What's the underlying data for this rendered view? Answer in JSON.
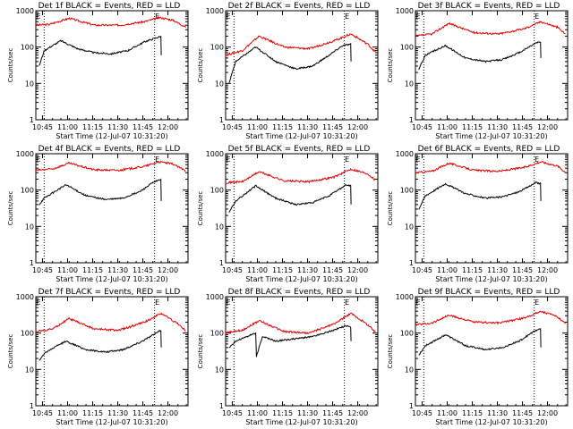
{
  "chart_data": {
    "type": "line",
    "grid": false,
    "xlabel": "Start Time (12-Jul-07 10:31:20)",
    "ylabel": "Counts/sec",
    "ylim": [
      1,
      1000
    ],
    "xlim_minutes": [
      10,
      101
    ],
    "xtick_minutes": [
      14,
      29,
      44,
      59,
      74,
      89
    ],
    "xtick_labels": [
      "10:45",
      "11:00",
      "11:15",
      "11:30",
      "11:45",
      "12:00"
    ],
    "ytick_values": [
      1,
      10,
      100,
      1000
    ],
    "ytick_labels": [
      "1",
      "10",
      "100",
      "1000"
    ],
    "marker_label": "E",
    "series_names": [
      "Events",
      "LLD"
    ],
    "series_colors": [
      "#000000",
      "#e00000"
    ],
    "panels": [
      {
        "title": "Det 1f BLACK = Events, RED = LLD",
        "events_window": [
          12,
          85
        ],
        "lld": [
          [
            10,
            400
          ],
          [
            18,
            420
          ],
          [
            30,
            620
          ],
          [
            45,
            400
          ],
          [
            60,
            400
          ],
          [
            75,
            500
          ],
          [
            84,
            650
          ],
          [
            92,
            550
          ],
          [
            100,
            350
          ]
        ],
        "events": [
          [
            12,
            30
          ],
          [
            15,
            80
          ],
          [
            25,
            150
          ],
          [
            35,
            90
          ],
          [
            45,
            70
          ],
          [
            55,
            65
          ],
          [
            65,
            80
          ],
          [
            75,
            140
          ],
          [
            82,
            180
          ],
          [
            85,
            200
          ],
          [
            85,
            60
          ]
        ],
        "dotted": [
          15,
          81
        ]
      },
      {
        "title": "Det 2f BLACK = Events, RED = LLD",
        "events_window": [
          12,
          85
        ],
        "lld": [
          [
            10,
            60
          ],
          [
            20,
            80
          ],
          [
            30,
            200
          ],
          [
            45,
            100
          ],
          [
            60,
            90
          ],
          [
            75,
            150
          ],
          [
            85,
            230
          ],
          [
            95,
            120
          ],
          [
            100,
            70
          ]
        ],
        "events": [
          [
            12,
            10
          ],
          [
            16,
            40
          ],
          [
            28,
            100
          ],
          [
            40,
            40
          ],
          [
            52,
            25
          ],
          [
            62,
            30
          ],
          [
            72,
            60
          ],
          [
            80,
            110
          ],
          [
            85,
            120
          ],
          [
            85,
            40
          ]
        ],
        "dotted": [
          15,
          81
        ]
      },
      {
        "title": "Det 3f BLACK = Events, RED = LLD",
        "events_window": [
          12,
          85
        ],
        "lld": [
          [
            10,
            200
          ],
          [
            20,
            230
          ],
          [
            30,
            450
          ],
          [
            45,
            250
          ],
          [
            60,
            230
          ],
          [
            75,
            320
          ],
          [
            85,
            500
          ],
          [
            95,
            350
          ],
          [
            100,
            220
          ]
        ],
        "events": [
          [
            12,
            25
          ],
          [
            16,
            60
          ],
          [
            28,
            110
          ],
          [
            40,
            50
          ],
          [
            52,
            40
          ],
          [
            62,
            45
          ],
          [
            72,
            70
          ],
          [
            82,
            130
          ],
          [
            85,
            140
          ],
          [
            85,
            50
          ]
        ],
        "dotted": [
          15,
          81
        ]
      },
      {
        "title": "Det 4f BLACK = Events, RED = LLD",
        "events_window": [
          12,
          85
        ],
        "lld": [
          [
            10,
            350
          ],
          [
            20,
            380
          ],
          [
            30,
            550
          ],
          [
            45,
            360
          ],
          [
            60,
            350
          ],
          [
            75,
            450
          ],
          [
            84,
            600
          ],
          [
            92,
            520
          ],
          [
            100,
            330
          ]
        ],
        "events": [
          [
            12,
            40
          ],
          [
            15,
            60
          ],
          [
            28,
            140
          ],
          [
            40,
            70
          ],
          [
            52,
            55
          ],
          [
            62,
            60
          ],
          [
            72,
            90
          ],
          [
            80,
            160
          ],
          [
            85,
            200
          ],
          [
            85,
            50
          ]
        ],
        "dotted": [
          15,
          81
        ]
      },
      {
        "title": "Det 5f BLACK = Events, RED = LLD",
        "events_window": [
          12,
          85
        ],
        "lld": [
          [
            10,
            160
          ],
          [
            20,
            170
          ],
          [
            30,
            320
          ],
          [
            45,
            180
          ],
          [
            60,
            170
          ],
          [
            75,
            230
          ],
          [
            85,
            380
          ],
          [
            95,
            280
          ],
          [
            100,
            180
          ]
        ],
        "events": [
          [
            12,
            25
          ],
          [
            16,
            50
          ],
          [
            28,
            130
          ],
          [
            40,
            60
          ],
          [
            52,
            40
          ],
          [
            62,
            45
          ],
          [
            72,
            70
          ],
          [
            82,
            140
          ],
          [
            85,
            130
          ],
          [
            85,
            40
          ]
        ],
        "dotted": [
          15,
          81
        ]
      },
      {
        "title": "Det 6f BLACK = Events, RED = LLD",
        "events_window": [
          12,
          85
        ],
        "lld": [
          [
            10,
            300
          ],
          [
            20,
            330
          ],
          [
            30,
            550
          ],
          [
            45,
            350
          ],
          [
            60,
            330
          ],
          [
            75,
            420
          ],
          [
            85,
            600
          ],
          [
            95,
            460
          ],
          [
            100,
            300
          ]
        ],
        "events": [
          [
            12,
            30
          ],
          [
            16,
            70
          ],
          [
            28,
            150
          ],
          [
            40,
            80
          ],
          [
            52,
            60
          ],
          [
            62,
            65
          ],
          [
            72,
            90
          ],
          [
            82,
            160
          ],
          [
            85,
            150
          ],
          [
            85,
            50
          ]
        ],
        "dotted": [
          15,
          81
        ]
      },
      {
        "title": "Det 7f BLACK = Events, RED = LLD",
        "events_window": [
          12,
          85
        ],
        "lld": [
          [
            10,
            110
          ],
          [
            20,
            130
          ],
          [
            30,
            250
          ],
          [
            45,
            130
          ],
          [
            60,
            120
          ],
          [
            75,
            200
          ],
          [
            85,
            350
          ],
          [
            95,
            180
          ],
          [
            100,
            110
          ]
        ],
        "events": [
          [
            12,
            18
          ],
          [
            16,
            30
          ],
          [
            28,
            60
          ],
          [
            40,
            35
          ],
          [
            52,
            30
          ],
          [
            62,
            35
          ],
          [
            72,
            55
          ],
          [
            82,
            100
          ],
          [
            85,
            120
          ],
          [
            85,
            40
          ]
        ],
        "dotted": [
          15,
          81
        ]
      },
      {
        "title": "Det 8f BLACK = Events, RED = LLD",
        "events_window": [
          12,
          85
        ],
        "lld": [
          [
            10,
            100
          ],
          [
            20,
            120
          ],
          [
            30,
            220
          ],
          [
            45,
            110
          ],
          [
            60,
            100
          ],
          [
            75,
            180
          ],
          [
            85,
            350
          ],
          [
            95,
            170
          ],
          [
            100,
            100
          ]
        ],
        "events": [
          [
            12,
            40
          ],
          [
            16,
            60
          ],
          [
            28,
            100
          ],
          [
            28,
            20
          ],
          [
            32,
            80
          ],
          [
            40,
            60
          ],
          [
            52,
            70
          ],
          [
            62,
            80
          ],
          [
            72,
            110
          ],
          [
            82,
            160
          ],
          [
            85,
            140
          ],
          [
            85,
            60
          ]
        ],
        "dotted": [
          15,
          81
        ]
      },
      {
        "title": "Det 9f BLACK = Events, RED = LLD",
        "events_window": [
          12,
          85
        ],
        "lld": [
          [
            10,
            170
          ],
          [
            20,
            190
          ],
          [
            30,
            310
          ],
          [
            45,
            200
          ],
          [
            60,
            190
          ],
          [
            75,
            260
          ],
          [
            85,
            400
          ],
          [
            95,
            280
          ],
          [
            100,
            180
          ]
        ],
        "events": [
          [
            12,
            25
          ],
          [
            16,
            45
          ],
          [
            28,
            90
          ],
          [
            40,
            45
          ],
          [
            52,
            35
          ],
          [
            62,
            40
          ],
          [
            72,
            60
          ],
          [
            82,
            120
          ],
          [
            85,
            130
          ],
          [
            85,
            40
          ]
        ],
        "dotted": [
          15,
          81
        ]
      }
    ]
  }
}
